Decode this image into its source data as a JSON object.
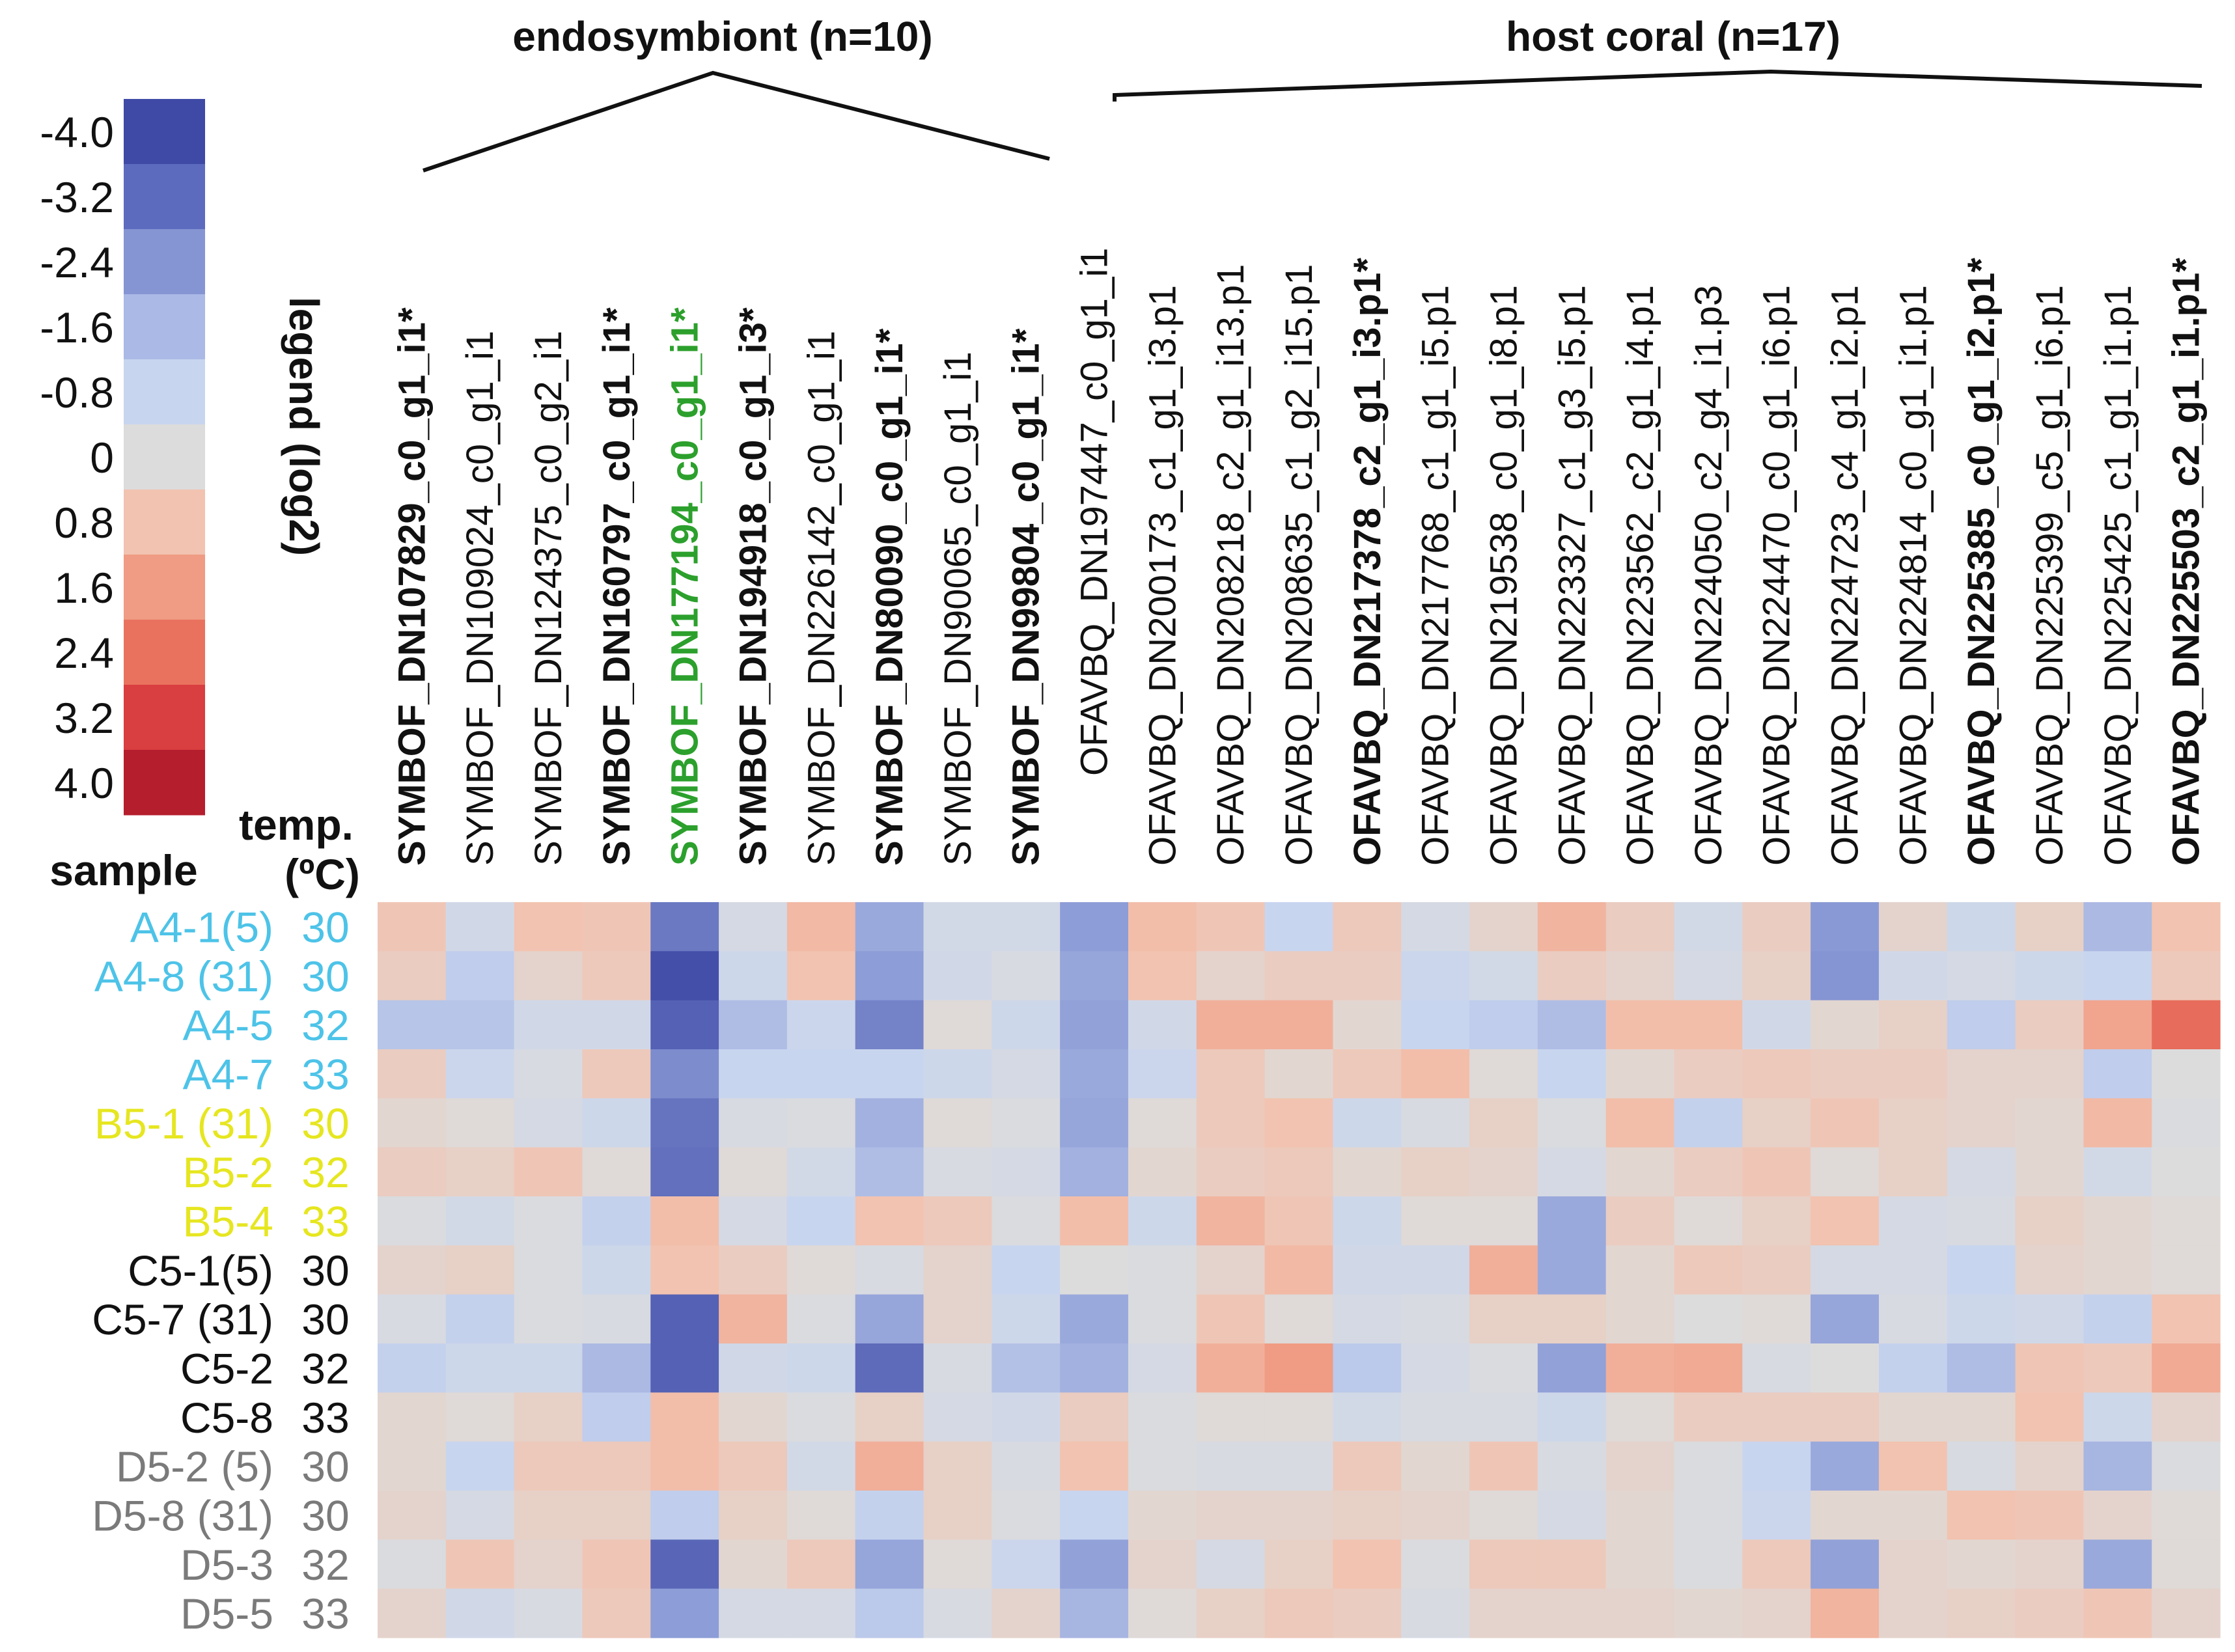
{
  "chart_data": {
    "type": "heatmap",
    "legend": {
      "title": "legend (log2)",
      "ticks": [
        "-4.0",
        "-3.2",
        "-2.4",
        "-1.6",
        "-0.8",
        "0",
        "0.8",
        "1.6",
        "2.4",
        "3.2",
        "4.0"
      ],
      "colors": [
        "#3f4aa6",
        "#5d6bbe",
        "#8595d3",
        "#aab9e5",
        "#c8d5ef",
        "#dcdcdc",
        "#f2c3b0",
        "#f09b83",
        "#e9725f",
        "#d93e40",
        "#b51e2d"
      ]
    },
    "groups": [
      {
        "label": "endosymbiont (n=10)",
        "count": 10
      },
      {
        "label": "host coral (n=17)",
        "count": 17
      }
    ],
    "row_header": {
      "sample": "sample",
      "temp_line1": "temp.",
      "temp_line2": "(ºC)"
    },
    "columns": [
      {
        "label": "SYMBOF_DN107829_c0_g1_i1*",
        "bold": true
      },
      {
        "label": "SYMBOF_DN109024_c0_g1_i1",
        "bold": false
      },
      {
        "label": "SYMBOF_DN124375_c0_g2_i1",
        "bold": false
      },
      {
        "label": "SYMBOF_DN160797_c0_g1_i1*",
        "bold": true
      },
      {
        "label": "SYMBOF_DN177194_c0_g1_i1*",
        "bold": true,
        "color": "#2ca02c"
      },
      {
        "label": "SYMBOF_DN194918_c0_g1_i3*",
        "bold": true
      },
      {
        "label": "SYMBOF_DN226142_c0_g1_i1",
        "bold": false
      },
      {
        "label": "SYMBOF_DN80090_c0_g1_i1*",
        "bold": true
      },
      {
        "label": "SYMBOF_DN90065_c0_g1_i1",
        "bold": false
      },
      {
        "label": "SYMBOF_DN99804_c0_g1_i1*",
        "bold": true
      },
      {
        "label": "OFAVBQ_DN197447_c0_g1_i1",
        "bold": false
      },
      {
        "label": "OFAVBQ_DN200173_c1_g1_i3.p1",
        "bold": false
      },
      {
        "label": "OFAVBQ_DN208218_c2_g1_i13.p1",
        "bold": false
      },
      {
        "label": "OFAVBQ_DN208635_c1_g2_i15.p1",
        "bold": false
      },
      {
        "label": "OFAVBQ_DN217378_c2_g1_i3.p1*",
        "bold": true
      },
      {
        "label": "OFAVBQ_DN217768_c1_g1_i5.p1",
        "bold": false
      },
      {
        "label": "OFAVBQ_DN219538_c0_g1_i8.p1",
        "bold": false
      },
      {
        "label": "OFAVBQ_DN223327_c1_g3_i5.p1",
        "bold": false
      },
      {
        "label": "OFAVBQ_DN223562_c2_g1_i4.p1",
        "bold": false
      },
      {
        "label": "OFAVBQ_DN224050_c2_g4_i1.p3",
        "bold": false
      },
      {
        "label": "OFAVBQ_DN224470_c0_g1_i6.p1",
        "bold": false
      },
      {
        "label": "OFAVBQ_DN224723_c4_g1_i2.p1",
        "bold": false
      },
      {
        "label": "OFAVBQ_DN224814_c0_g1_i1.p1",
        "bold": false
      },
      {
        "label": "OFAVBQ_DN225385_c0_g1_i2.p1*",
        "bold": true
      },
      {
        "label": "OFAVBQ_DN225399_c5_g1_i6.p1",
        "bold": false
      },
      {
        "label": "OFAVBQ_DN225425_c1_g1_i1.p1",
        "bold": false
      },
      {
        "label": "OFAVBQ_DN225503_c2_g1_i1.p1*",
        "bold": true
      }
    ],
    "rows": [
      {
        "sample": "A4-1(5)",
        "temp": "30",
        "color": "#4dc3e8"
      },
      {
        "sample": "A4-8 (31)",
        "temp": "30",
        "color": "#4dc3e8"
      },
      {
        "sample": "A4-5",
        "temp": "32",
        "color": "#4dc3e8"
      },
      {
        "sample": "A4-7",
        "temp": "33",
        "color": "#4dc3e8"
      },
      {
        "sample": "B5-1 (31)",
        "temp": "30",
        "color": "#e6e620"
      },
      {
        "sample": "B5-2",
        "temp": "32",
        "color": "#e6e620"
      },
      {
        "sample": "B5-4",
        "temp": "33",
        "color": "#e6e620"
      },
      {
        "sample": "C5-1(5)",
        "temp": "30",
        "color": "#111111"
      },
      {
        "sample": "C5-7 (31)",
        "temp": "30",
        "color": "#111111"
      },
      {
        "sample": "C5-2",
        "temp": "32",
        "color": "#111111"
      },
      {
        "sample": "C5-8",
        "temp": "33",
        "color": "#111111"
      },
      {
        "sample": "D5-2 (5)",
        "temp": "30",
        "color": "#7a7a7a"
      },
      {
        "sample": "D5-8 (31)",
        "temp": "30",
        "color": "#7a7a7a"
      },
      {
        "sample": "D5-3",
        "temp": "32",
        "color": "#7a7a7a"
      },
      {
        "sample": "D5-5",
        "temp": "33",
        "color": "#7a7a7a"
      }
    ],
    "values": [
      [
        0.7,
        -0.5,
        0.8,
        0.7,
        -3.0,
        -0.3,
        1.0,
        -1.9,
        -0.4,
        -0.4,
        -2.2,
        0.9,
        0.7,
        -0.8,
        0.6,
        -0.3,
        0.3,
        1.1,
        0.5,
        -0.4,
        0.5,
        -2.3,
        0.3,
        -0.6,
        0.4,
        -1.5,
        0.8
      ],
      [
        0.5,
        -1.0,
        0.3,
        0.6,
        -3.9,
        -0.6,
        0.8,
        -2.2,
        -0.5,
        -0.2,
        -2.0,
        0.8,
        0.3,
        0.5,
        0.5,
        -0.7,
        -0.4,
        0.5,
        0.3,
        -0.3,
        0.4,
        -2.4,
        -0.5,
        -0.3,
        -0.6,
        -0.8,
        0.6
      ],
      [
        -1.2,
        -1.2,
        -0.5,
        -0.5,
        -3.5,
        -1.4,
        -0.7,
        -2.8,
        0.1,
        -0.6,
        -2.1,
        -0.5,
        1.2,
        1.2,
        0.2,
        -0.8,
        -1.0,
        -1.4,
        0.9,
        0.9,
        -0.5,
        0.2,
        0.4,
        -1.0,
        0.5,
        1.4,
        2.5
      ],
      [
        0.5,
        -0.7,
        -0.2,
        0.6,
        -2.6,
        -0.8,
        -0.8,
        -0.8,
        -0.6,
        -0.3,
        -1.9,
        -0.7,
        0.6,
        0.2,
        0.6,
        0.9,
        0.1,
        -0.8,
        0.2,
        0.5,
        0.6,
        0.5,
        0.5,
        0.3,
        0.3,
        -1.0,
        0.0
      ],
      [
        0.2,
        0.1,
        -0.3,
        -0.6,
        -3.1,
        -0.2,
        -0.1,
        -1.7,
        0.1,
        -0.1,
        -2.0,
        0.1,
        0.6,
        0.8,
        -0.6,
        -0.2,
        0.4,
        -0.1,
        0.9,
        -0.9,
        0.4,
        0.7,
        0.4,
        0.3,
        0.2,
        1.0,
        -0.1
      ],
      [
        0.5,
        0.4,
        0.7,
        0.1,
        -3.2,
        0.1,
        -0.4,
        -1.4,
        -0.2,
        -0.3,
        -1.7,
        0.2,
        0.5,
        0.6,
        0.2,
        0.4,
        0.3,
        -0.3,
        0.2,
        0.5,
        0.7,
        0.1,
        0.4,
        -0.3,
        0.2,
        -0.4,
        0.0
      ],
      [
        -0.1,
        -0.4,
        -0.1,
        -0.9,
        0.9,
        -0.3,
        -0.8,
        0.8,
        0.6,
        -0.1,
        0.9,
        -0.6,
        1.1,
        0.7,
        -0.6,
        0.1,
        0.1,
        -1.9,
        0.5,
        0.1,
        0.4,
        0.8,
        -0.3,
        -0.2,
        0.4,
        0.2,
        0.1
      ],
      [
        0.3,
        0.4,
        -0.1,
        -0.6,
        0.8,
        0.5,
        0.1,
        -0.2,
        0.3,
        -0.8,
        0.0,
        -0.1,
        0.3,
        1.0,
        -0.5,
        -0.5,
        1.2,
        -1.9,
        0.2,
        0.6,
        0.5,
        -0.3,
        -0.3,
        -0.8,
        0.3,
        0.2,
        0.1
      ],
      [
        -0.2,
        -0.9,
        -0.1,
        -0.2,
        -3.5,
        1.1,
        -0.1,
        -2.0,
        0.3,
        -0.6,
        -1.9,
        -0.1,
        0.7,
        0.1,
        -0.3,
        -0.2,
        0.4,
        0.4,
        0.2,
        0.0,
        0.1,
        -2.0,
        -0.2,
        -0.6,
        -0.5,
        -0.9,
        0.8
      ],
      [
        -0.9,
        -0.6,
        -0.6,
        -1.5,
        -3.5,
        -0.5,
        -0.6,
        -3.3,
        -0.2,
        -1.3,
        -1.7,
        -0.3,
        1.2,
        1.6,
        -1.1,
        -0.3,
        -0.1,
        -2.1,
        1.2,
        1.3,
        -0.2,
        0.0,
        -0.9,
        -1.4,
        0.7,
        0.6,
        1.3
      ],
      [
        0.2,
        0.1,
        0.4,
        -1.0,
        0.9,
        0.2,
        -0.1,
        0.4,
        -0.3,
        -0.5,
        0.5,
        -0.1,
        0.1,
        0.1,
        -0.4,
        -0.2,
        -0.2,
        -0.6,
        0.1,
        0.5,
        0.5,
        0.5,
        0.2,
        0.2,
        0.8,
        -0.6,
        0.3
      ],
      [
        0.2,
        -0.8,
        0.6,
        0.6,
        0.9,
        0.6,
        -0.4,
        1.2,
        0.4,
        -0.2,
        0.8,
        -0.1,
        -0.2,
        -0.2,
        0.6,
        0.2,
        0.7,
        -0.2,
        0.3,
        -0.1,
        -0.8,
        -1.9,
        0.8,
        -0.2,
        0.3,
        -1.6,
        -0.1
      ],
      [
        0.3,
        -0.3,
        0.4,
        0.4,
        -1.0,
        0.4,
        0.1,
        -0.9,
        0.4,
        -0.1,
        -0.8,
        0.2,
        0.3,
        0.3,
        0.4,
        0.3,
        0.1,
        -0.3,
        0.2,
        -0.1,
        -0.7,
        0.2,
        0.2,
        0.8,
        0.7,
        0.3,
        0.1
      ],
      [
        -0.1,
        0.7,
        0.3,
        0.7,
        -3.4,
        0.2,
        0.6,
        -2.0,
        0.1,
        -0.7,
        -2.1,
        0.3,
        -0.3,
        0.4,
        0.8,
        -0.1,
        0.6,
        0.6,
        0.2,
        -0.1,
        0.6,
        -2.1,
        0.3,
        0.2,
        0.3,
        -1.9,
        0.1
      ],
      [
        0.3,
        -0.5,
        -0.2,
        0.6,
        -2.2,
        -0.3,
        -0.3,
        -1.1,
        -0.2,
        0.3,
        -1.6,
        0.1,
        0.4,
        0.6,
        0.5,
        -0.2,
        0.3,
        0.3,
        0.3,
        0.2,
        0.3,
        1.1,
        0.3,
        0.4,
        0.5,
        0.7,
        0.3
      ]
    ]
  }
}
